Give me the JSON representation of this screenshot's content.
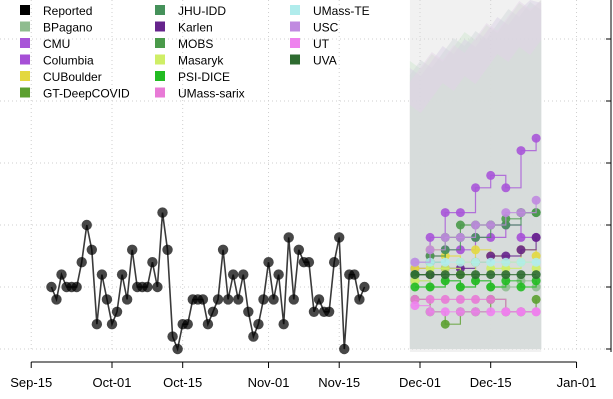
{
  "chart_data": {
    "type": "scatter",
    "x_axis": {
      "ticks": [
        "Sep-15",
        "Oct-01",
        "Oct-15",
        "Nov-01",
        "Nov-15",
        "Dec-01",
        "Dec-15",
        "Jan-01"
      ],
      "tick_dates": [
        "2020-09-15",
        "2020-10-01",
        "2020-10-15",
        "2020-11-01",
        "2020-11-15",
        "2020-12-01",
        "2020-12-15",
        "2021-01-01"
      ],
      "range": [
        "2020-09-10",
        "2021-01-03"
      ]
    },
    "y_axis": {
      "tick_labels_visible": false,
      "range": [
        0,
        10
      ],
      "grid_levels": [
        0,
        1,
        2,
        3,
        4,
        5
      ]
    },
    "grid": "dotted",
    "legend": {
      "position": "top-left",
      "entries": [
        {
          "label": "Reported",
          "color": "#000000"
        },
        {
          "label": "BPagano",
          "color": "#8fbc8f"
        },
        {
          "label": "CMU",
          "color": "#a855d8"
        },
        {
          "label": "Columbia",
          "color": "#a64fd6"
        },
        {
          "label": "CUBoulder",
          "color": "#e3d840"
        },
        {
          "label": "GT-DeepCOVID",
          "color": "#5ca030"
        },
        {
          "label": "JHU-IDD",
          "color": "#45915a"
        },
        {
          "label": "Karlen",
          "color": "#66248c"
        },
        {
          "label": "MOBS",
          "color": "#4a9a4a"
        },
        {
          "label": "Masaryk",
          "color": "#cfee66"
        },
        {
          "label": "PSI-DICE",
          "color": "#22bb22"
        },
        {
          "label": "UMass-sarix",
          "color": "#e87ad6"
        },
        {
          "label": "UMass-TE",
          "color": "#b0ecec"
        },
        {
          "label": "USC",
          "color": "#c08ae0"
        },
        {
          "label": "UT",
          "color": "#ee82ee"
        },
        {
          "label": "UVA",
          "color": "#2e6b30"
        }
      ]
    },
    "series": [
      {
        "name": "Reported",
        "color": "#000000",
        "points": [
          [
            "2020-09-19",
            1.0
          ],
          [
            "2020-09-20",
            0.8
          ],
          [
            "2020-09-21",
            1.2
          ],
          [
            "2020-09-22",
            1.0
          ],
          [
            "2020-09-23",
            1.0
          ],
          [
            "2020-09-24",
            1.0
          ],
          [
            "2020-09-25",
            1.4
          ],
          [
            "2020-09-26",
            2.0
          ],
          [
            "2020-09-27",
            1.6
          ],
          [
            "2020-09-28",
            0.4
          ],
          [
            "2020-09-29",
            1.2
          ],
          [
            "2020-09-30",
            0.8
          ],
          [
            "2020-10-01",
            0.4
          ],
          [
            "2020-10-02",
            0.6
          ],
          [
            "2020-10-03",
            1.2
          ],
          [
            "2020-10-04",
            0.8
          ],
          [
            "2020-10-05",
            1.6
          ],
          [
            "2020-10-06",
            1.0
          ],
          [
            "2020-10-07",
            1.0
          ],
          [
            "2020-10-08",
            1.0
          ],
          [
            "2020-10-09",
            1.4
          ],
          [
            "2020-10-10",
            1.0
          ],
          [
            "2020-10-11",
            2.2
          ],
          [
            "2020-10-12",
            1.6
          ],
          [
            "2020-10-13",
            0.2
          ],
          [
            "2020-10-14",
            0.0
          ],
          [
            "2020-10-15",
            0.4
          ],
          [
            "2020-10-16",
            0.4
          ],
          [
            "2020-10-17",
            0.8
          ],
          [
            "2020-10-18",
            0.8
          ],
          [
            "2020-10-19",
            0.8
          ],
          [
            "2020-10-20",
            0.4
          ],
          [
            "2020-10-21",
            0.6
          ],
          [
            "2020-10-22",
            0.8
          ],
          [
            "2020-10-23",
            1.6
          ],
          [
            "2020-10-24",
            0.8
          ],
          [
            "2020-10-25",
            1.2
          ],
          [
            "2020-10-26",
            0.8
          ],
          [
            "2020-10-27",
            1.2
          ],
          [
            "2020-10-28",
            0.6
          ],
          [
            "2020-10-29",
            0.2
          ],
          [
            "2020-10-30",
            0.4
          ],
          [
            "2020-10-31",
            0.8
          ],
          [
            "2020-11-01",
            1.4
          ],
          [
            "2020-11-02",
            0.8
          ],
          [
            "2020-11-03",
            1.2
          ],
          [
            "2020-11-04",
            0.4
          ],
          [
            "2020-11-05",
            1.8
          ],
          [
            "2020-11-06",
            0.8
          ],
          [
            "2020-11-07",
            1.6
          ],
          [
            "2020-11-08",
            1.4
          ],
          [
            "2020-11-09",
            1.4
          ],
          [
            "2020-11-10",
            0.6
          ],
          [
            "2020-11-11",
            0.8
          ],
          [
            "2020-11-12",
            0.6
          ],
          [
            "2020-11-13",
            0.6
          ],
          [
            "2020-11-14",
            1.4
          ],
          [
            "2020-11-15",
            1.8
          ],
          [
            "2020-11-16",
            0.0
          ],
          [
            "2020-11-17",
            1.2
          ],
          [
            "2020-11-18",
            1.2
          ],
          [
            "2020-11-19",
            0.8
          ],
          [
            "2020-11-20",
            1.0
          ]
        ]
      },
      {
        "name": "BPagano",
        "color": "#8fbc8f",
        "points": [
          [
            "2020-11-30",
            1.1
          ],
          [
            "2020-12-03",
            1.0
          ],
          [
            "2020-12-06",
            1.1
          ],
          [
            "2020-12-09",
            1.0
          ],
          [
            "2020-12-12",
            1.1
          ],
          [
            "2020-12-15",
            1.0
          ],
          [
            "2020-12-18",
            1.0
          ],
          [
            "2020-12-21",
            1.1
          ],
          [
            "2020-12-24",
            1.0
          ]
        ]
      },
      {
        "name": "CMU",
        "color": "#a855d8",
        "points": [
          [
            "2020-11-30",
            1.4
          ],
          [
            "2020-12-03",
            1.8
          ],
          [
            "2020-12-06",
            2.2
          ],
          [
            "2020-12-09",
            2.2
          ],
          [
            "2020-12-12",
            2.6
          ],
          [
            "2020-12-15",
            2.8
          ],
          [
            "2020-12-18",
            2.6
          ],
          [
            "2020-12-21",
            3.2
          ],
          [
            "2020-12-24",
            3.4
          ]
        ]
      },
      {
        "name": "Columbia",
        "color": "#a64fd6",
        "points": [
          [
            "2020-11-30",
            1.3
          ],
          [
            "2020-12-03",
            1.5
          ],
          [
            "2020-12-06",
            1.6
          ],
          [
            "2020-12-09",
            1.6
          ],
          [
            "2020-12-12",
            1.8
          ],
          [
            "2020-12-15",
            1.8
          ],
          [
            "2020-12-18",
            2.0
          ],
          [
            "2020-12-21",
            1.8
          ],
          [
            "2020-12-24",
            1.8
          ]
        ]
      },
      {
        "name": "CUBoulder",
        "color": "#e3d840",
        "points": [
          [
            "2020-11-30",
            1.3
          ],
          [
            "2020-12-03",
            1.6
          ],
          [
            "2020-12-06",
            1.5
          ],
          [
            "2020-12-09",
            1.4
          ],
          [
            "2020-12-12",
            1.6
          ],
          [
            "2020-12-15",
            1.5
          ],
          [
            "2020-12-18",
            1.4
          ],
          [
            "2020-12-21",
            1.6
          ],
          [
            "2020-12-24",
            1.5
          ]
        ]
      },
      {
        "name": "GT-DeepCOVID",
        "color": "#5ca030",
        "points": [
          [
            "2020-11-30",
            0.8
          ],
          [
            "2020-12-03",
            0.6
          ],
          [
            "2020-12-06",
            0.4
          ],
          [
            "2020-12-09",
            0.6
          ],
          [
            "2020-12-12",
            0.6
          ],
          [
            "2020-12-15",
            0.8
          ],
          [
            "2020-12-18",
            0.6
          ],
          [
            "2020-12-21",
            0.6
          ],
          [
            "2020-12-24",
            0.8
          ]
        ]
      },
      {
        "name": "JHU-IDD",
        "color": "#45915a",
        "points": [
          [
            "2020-11-30",
            1.2
          ],
          [
            "2020-12-03",
            1.4
          ],
          [
            "2020-12-06",
            1.6
          ],
          [
            "2020-12-09",
            1.8
          ],
          [
            "2020-12-12",
            1.8
          ],
          [
            "2020-12-15",
            2.0
          ],
          [
            "2020-12-18",
            2.0
          ],
          [
            "2020-12-21",
            2.2
          ],
          [
            "2020-12-24",
            2.2
          ]
        ]
      },
      {
        "name": "Karlen",
        "color": "#66248c",
        "points": [
          [
            "2020-11-30",
            1.2
          ],
          [
            "2020-12-03",
            1.2
          ],
          [
            "2020-12-06",
            1.3
          ],
          [
            "2020-12-09",
            1.3
          ],
          [
            "2020-12-12",
            1.4
          ],
          [
            "2020-12-15",
            1.5
          ],
          [
            "2020-12-18",
            1.5
          ],
          [
            "2020-12-21",
            1.6
          ],
          [
            "2020-12-24",
            1.8
          ]
        ]
      },
      {
        "name": "MOBS",
        "color": "#4a9a4a",
        "points": [
          [
            "2020-11-30",
            1.2
          ],
          [
            "2020-12-03",
            1.5
          ],
          [
            "2020-12-06",
            1.8
          ],
          [
            "2020-12-09",
            2.0
          ],
          [
            "2020-12-12",
            2.0
          ],
          [
            "2020-12-15",
            2.0
          ],
          [
            "2020-12-18",
            2.1
          ],
          [
            "2020-12-21",
            2.2
          ],
          [
            "2020-12-24",
            2.2
          ]
        ]
      },
      {
        "name": "Masaryk",
        "color": "#cfee66",
        "points": [
          [
            "2020-11-30",
            1.1
          ],
          [
            "2020-12-03",
            1.3
          ],
          [
            "2020-12-06",
            1.3
          ],
          [
            "2020-12-09",
            1.2
          ],
          [
            "2020-12-12",
            1.4
          ],
          [
            "2020-12-15",
            1.3
          ],
          [
            "2020-12-18",
            1.3
          ],
          [
            "2020-12-21",
            1.4
          ],
          [
            "2020-12-24",
            1.3
          ]
        ]
      },
      {
        "name": "PSI-DICE",
        "color": "#22bb22",
        "points": [
          [
            "2020-11-30",
            1.0
          ],
          [
            "2020-12-03",
            1.0
          ],
          [
            "2020-12-06",
            1.1
          ],
          [
            "2020-12-09",
            1.0
          ],
          [
            "2020-12-12",
            1.1
          ],
          [
            "2020-12-15",
            1.0
          ],
          [
            "2020-12-18",
            1.1
          ],
          [
            "2020-12-21",
            1.0
          ],
          [
            "2020-12-24",
            1.1
          ]
        ]
      },
      {
        "name": "UMass-sarix",
        "color": "#e87ad6",
        "points": [
          [
            "2020-11-30",
            0.8
          ],
          [
            "2020-12-03",
            0.8
          ],
          [
            "2020-12-06",
            0.8
          ],
          [
            "2020-12-09",
            0.8
          ],
          [
            "2020-12-12",
            0.8
          ],
          [
            "2020-12-15",
            0.8
          ],
          [
            "2020-12-18",
            0.6
          ],
          [
            "2020-12-21",
            0.6
          ],
          [
            "2020-12-24",
            0.6
          ]
        ]
      },
      {
        "name": "UMass-TE",
        "color": "#b0ecec",
        "points": [
          [
            "2020-11-30",
            1.4
          ],
          [
            "2020-12-03",
            1.4
          ],
          [
            "2020-12-06",
            1.4
          ],
          [
            "2020-12-09",
            1.4
          ],
          [
            "2020-12-12",
            1.4
          ],
          [
            "2020-12-15",
            1.4
          ],
          [
            "2020-12-18",
            1.4
          ],
          [
            "2020-12-21",
            1.4
          ],
          [
            "2020-12-24",
            1.4
          ]
        ]
      },
      {
        "name": "USC",
        "color": "#c08ae0",
        "points": [
          [
            "2020-11-30",
            1.4
          ],
          [
            "2020-12-03",
            1.6
          ],
          [
            "2020-12-06",
            1.8
          ],
          [
            "2020-12-09",
            1.8
          ],
          [
            "2020-12-12",
            2.0
          ],
          [
            "2020-12-15",
            2.0
          ],
          [
            "2020-12-18",
            2.2
          ],
          [
            "2020-12-21",
            2.2
          ],
          [
            "2020-12-24",
            2.4
          ]
        ]
      },
      {
        "name": "UT",
        "color": "#ee82ee",
        "points": [
          [
            "2020-11-30",
            0.7
          ],
          [
            "2020-12-03",
            0.6
          ],
          [
            "2020-12-06",
            0.6
          ],
          [
            "2020-12-09",
            0.6
          ],
          [
            "2020-12-12",
            0.6
          ],
          [
            "2020-12-15",
            0.6
          ],
          [
            "2020-12-18",
            0.6
          ],
          [
            "2020-12-21",
            0.6
          ],
          [
            "2020-12-24",
            0.6
          ]
        ]
      },
      {
        "name": "UVA",
        "color": "#2e6b30",
        "points": [
          [
            "2020-11-30",
            1.2
          ],
          [
            "2020-12-03",
            1.2
          ],
          [
            "2020-12-06",
            1.2
          ],
          [
            "2020-12-09",
            1.2
          ],
          [
            "2020-12-12",
            1.2
          ],
          [
            "2020-12-15",
            1.2
          ],
          [
            "2020-12-18",
            1.2
          ],
          [
            "2020-12-21",
            1.2
          ],
          [
            "2020-12-24",
            1.2
          ]
        ]
      }
    ],
    "forecast_bands": [
      {
        "color": "#c8eec8",
        "lower": 0.0,
        "upper": 10.0
      },
      {
        "color": "#d8c8ec",
        "lower": 0.0,
        "upper": 9.2
      },
      {
        "color": "#cfd8dc",
        "lower": 0.0,
        "upper": 7.5
      },
      {
        "color": "#e8d0ee",
        "lower": 0.0,
        "upper": 6.0
      },
      {
        "color": "#d0e8d0",
        "lower": 0.0,
        "upper": 5.0
      }
    ],
    "forecast_window": [
      "2020-11-29",
      "2020-12-25"
    ]
  }
}
